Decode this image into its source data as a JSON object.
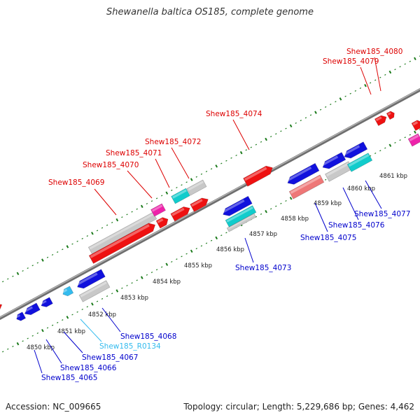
{
  "title": "Shewanella baltica OS185, complete genome",
  "footer": {
    "accession": "Accession: NC_009665",
    "summary": "Topology: circular; Length: 5,229,686 bp; Genes: 4,462"
  },
  "colors": {
    "forward_label": "#dd0000",
    "reverse_label": "#0000cc",
    "rna_label": "#33bbee",
    "forward_gene": "#ee1111",
    "reverse_gene": "#1111dd",
    "pseudo_gene": "#c8c8c8",
    "cyan_gene": "#11cccc",
    "pink_gene": "#ee22aa",
    "light_red_gene": "#ee7777",
    "rna_gene": "#33bbee",
    "backbone": "#888888",
    "ticks": "#1a7a1a"
  },
  "ticks": [
    {
      "label": "4850 kbp"
    },
    {
      "label": "4851 kbp"
    },
    {
      "label": "4852 kbp"
    },
    {
      "label": "4853 kbp"
    },
    {
      "label": "4854 kbp"
    },
    {
      "label": "4855 kbp"
    },
    {
      "label": "4856 kbp"
    },
    {
      "label": "4857 kbp"
    },
    {
      "label": "4858 kbp"
    },
    {
      "label": "4859 kbp"
    },
    {
      "label": "4860 kbp"
    },
    {
      "label": "4861 kbp"
    }
  ],
  "forward_labels": [
    {
      "text": "Shew185_4080"
    },
    {
      "text": "Shew185_4079"
    },
    {
      "text": "Shew185_4074"
    },
    {
      "text": "Shew185_4072"
    },
    {
      "text": "Shew185_4071"
    },
    {
      "text": "Shew185_4070"
    },
    {
      "text": "Shew185_4069"
    }
  ],
  "reverse_labels": [
    {
      "text": "Shew185_4077",
      "kind": "gene"
    },
    {
      "text": "Shew185_4076",
      "kind": "gene"
    },
    {
      "text": "Shew185_4075",
      "kind": "gene"
    },
    {
      "text": "Shew185_4073",
      "kind": "gene"
    },
    {
      "text": "Shew185_4068",
      "kind": "gene"
    },
    {
      "text": "Shew185_R0134",
      "kind": "rna"
    },
    {
      "text": "Shew185_4067",
      "kind": "gene"
    },
    {
      "text": "Shew185_4066",
      "kind": "gene"
    },
    {
      "text": "Shew185_4065",
      "kind": "gene"
    }
  ]
}
